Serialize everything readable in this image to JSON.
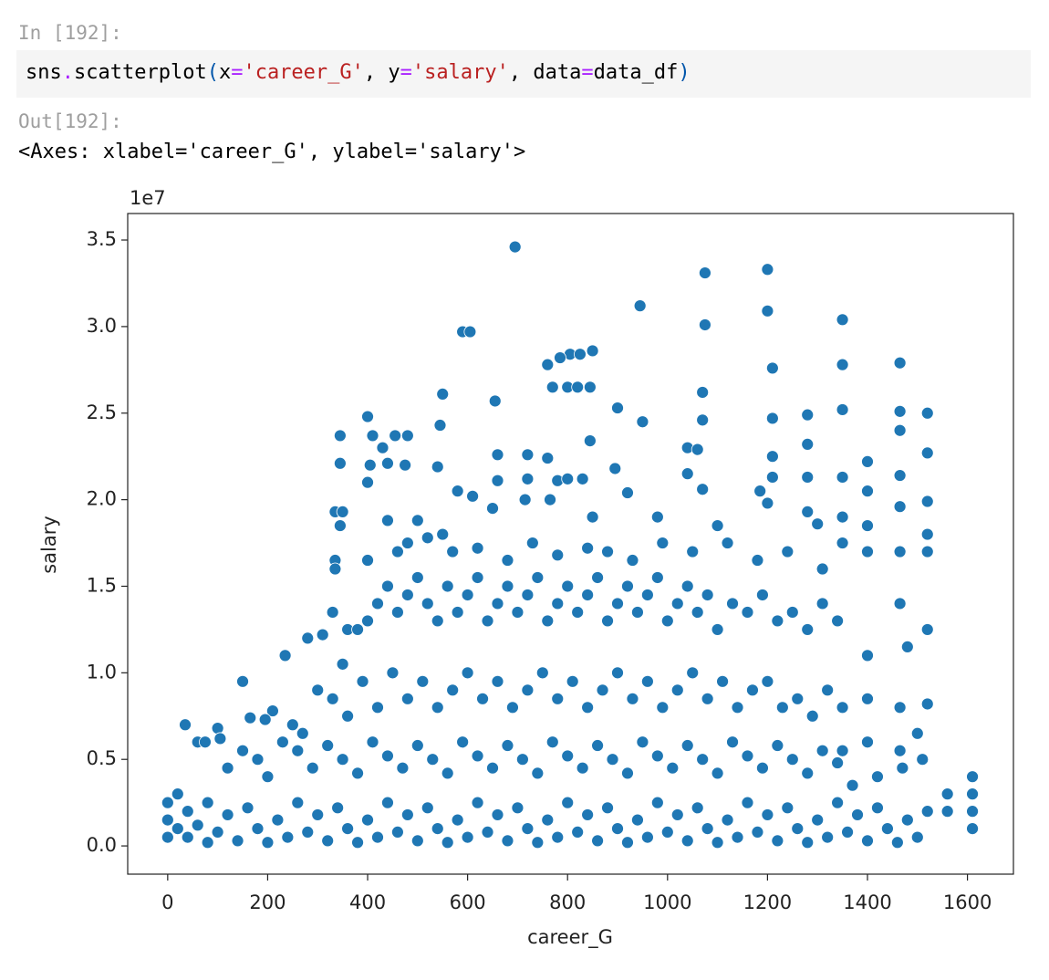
{
  "input_prompt": "In [192]:",
  "code_tokens": [
    {
      "text": "sns",
      "color": "#000000"
    },
    {
      "text": ".",
      "color": "#aa22ff"
    },
    {
      "text": "scatterplot",
      "color": "#000000"
    },
    {
      "text": "(",
      "color": "#0055aa"
    },
    {
      "text": "x",
      "color": "#000000"
    },
    {
      "text": "=",
      "color": "#aa22ff"
    },
    {
      "text": "'career_G'",
      "color": "#ba2121"
    },
    {
      "text": ", y",
      "color": "#000000"
    },
    {
      "text": "=",
      "color": "#aa22ff"
    },
    {
      "text": "'salary'",
      "color": "#ba2121"
    },
    {
      "text": ", data",
      "color": "#000000"
    },
    {
      "text": "=",
      "color": "#aa22ff"
    },
    {
      "text": "data_df",
      "color": "#000000"
    },
    {
      "text": ")",
      "color": "#0055aa"
    }
  ],
  "output_prompt": "Out[192]:",
  "output_text": "<Axes: xlabel='career_G', ylabel='salary'>",
  "chart_data": {
    "type": "scatter",
    "x_label": "career_G",
    "y_label": "salary",
    "y_offset_label": "1e7",
    "color": "#1f77b4",
    "edge_color": "#ffffff",
    "xlim": [
      -80,
      1692
    ],
    "ylim": [
      -0.163,
      3.653
    ],
    "xticks": [
      0,
      200,
      400,
      600,
      800,
      1000,
      1200,
      1400,
      1600
    ],
    "yticks": [
      {
        "value": 0,
        "label": "0.0"
      },
      0.5,
      {
        "value": 1,
        "label": "1.0"
      },
      1.5,
      {
        "value": 2,
        "label": "2.0"
      },
      2.5,
      {
        "value": 3,
        "label": "3.0"
      },
      3.5
    ],
    "x": [
      695,
      1075,
      1200,
      945,
      1075,
      1200,
      1350,
      590,
      605,
      1465,
      1350,
      1210,
      850,
      805,
      825,
      785,
      760,
      770,
      800,
      820,
      845,
      550,
      1070,
      655,
      900,
      1350,
      1465,
      1520,
      1280,
      400,
      1210,
      950,
      1070,
      545,
      345,
      410,
      455,
      480,
      845,
      1280,
      1465,
      430,
      1040,
      1060,
      1210,
      660,
      720,
      760,
      1400,
      1520,
      345,
      405,
      440,
      475,
      540,
      895,
      1465,
      1040,
      1210,
      1280,
      1350,
      400,
      720,
      780,
      800,
      830,
      660,
      1185,
      1070,
      580,
      920,
      1400,
      610,
      715,
      765,
      1520,
      1200,
      650,
      440,
      335,
      350,
      345,
      500,
      1280,
      1465,
      1350,
      1100,
      550,
      850,
      980,
      1300,
      1520,
      1400,
      400,
      460,
      480,
      520,
      570,
      620,
      680,
      730,
      780,
      840,
      880,
      930,
      990,
      1050,
      1120,
      1180,
      1240,
      1310,
      1350,
      1465,
      1520,
      335,
      335,
      1400,
      330,
      360,
      380,
      400,
      420,
      440,
      460,
      480,
      500,
      520,
      540,
      560,
      580,
      600,
      620,
      640,
      660,
      680,
      700,
      720,
      740,
      760,
      780,
      800,
      820,
      840,
      860,
      880,
      900,
      920,
      940,
      960,
      980,
      1000,
      1020,
      1040,
      1060,
      1080,
      1100,
      1130,
      1160,
      1190,
      1220,
      1250,
      1280,
      1310,
      1340,
      1400,
      1465,
      1520,
      1480,
      280,
      235,
      310,
      350,
      150,
      165,
      210,
      195,
      250,
      270,
      300,
      330,
      360,
      390,
      420,
      450,
      480,
      510,
      540,
      570,
      600,
      630,
      660,
      690,
      720,
      750,
      780,
      810,
      840,
      870,
      900,
      930,
      960,
      990,
      1020,
      1050,
      1080,
      1110,
      1140,
      1170,
      1200,
      1230,
      1260,
      1290,
      1320,
      1350,
      1400,
      1465,
      1520,
      1500,
      1465,
      1400,
      1350,
      35,
      60,
      75,
      100,
      105,
      120,
      150,
      180,
      200,
      230,
      260,
      290,
      320,
      350,
      380,
      410,
      440,
      470,
      500,
      530,
      560,
      590,
      620,
      650,
      680,
      710,
      740,
      770,
      800,
      830,
      860,
      890,
      920,
      950,
      980,
      1010,
      1040,
      1070,
      1100,
      1130,
      1160,
      1190,
      1220,
      1250,
      1280,
      1310,
      1340,
      1370,
      1420,
      1470,
      1510,
      1560,
      1610,
      1610,
      0,
      0,
      0,
      20,
      20,
      40,
      40,
      60,
      80,
      80,
      100,
      120,
      140,
      160,
      180,
      200,
      220,
      240,
      260,
      280,
      300,
      320,
      340,
      360,
      380,
      400,
      420,
      440,
      460,
      480,
      500,
      520,
      540,
      560,
      580,
      600,
      620,
      640,
      660,
      680,
      700,
      720,
      740,
      760,
      780,
      800,
      820,
      840,
      860,
      880,
      900,
      920,
      940,
      960,
      980,
      1000,
      1020,
      1040,
      1060,
      1080,
      1100,
      1120,
      1140,
      1160,
      1180,
      1200,
      1220,
      1240,
      1260,
      1280,
      1300,
      1320,
      1340,
      1360,
      1380,
      1400,
      1420,
      1440,
      1460,
      1480,
      1500,
      1520,
      1560,
      1610,
      1610
    ],
    "values": [
      3.46,
      3.31,
      3.33,
      3.12,
      3.01,
      3.09,
      3.04,
      2.97,
      2.97,
      2.79,
      2.78,
      2.76,
      2.86,
      2.84,
      2.84,
      2.82,
      2.78,
      2.65,
      2.65,
      2.65,
      2.65,
      2.61,
      2.62,
      2.57,
      2.53,
      2.52,
      2.51,
      2.5,
      2.49,
      2.48,
      2.47,
      2.45,
      2.46,
      2.43,
      2.37,
      2.37,
      2.37,
      2.37,
      2.34,
      2.32,
      2.4,
      2.3,
      2.3,
      2.29,
      2.25,
      2.26,
      2.26,
      2.24,
      2.22,
      2.27,
      2.21,
      2.2,
      2.21,
      2.2,
      2.19,
      2.18,
      2.14,
      2.15,
      2.13,
      2.13,
      2.13,
      2.1,
      2.12,
      2.11,
      2.12,
      2.12,
      2.11,
      2.05,
      2.06,
      2.05,
      2.04,
      2.05,
      2.02,
      2.0,
      2.0,
      1.99,
      1.98,
      1.95,
      1.88,
      1.93,
      1.93,
      1.85,
      1.88,
      1.93,
      1.96,
      1.9,
      1.85,
      1.8,
      1.9,
      1.9,
      1.86,
      1.8,
      1.85,
      1.65,
      1.7,
      1.75,
      1.78,
      1.7,
      1.72,
      1.65,
      1.75,
      1.68,
      1.72,
      1.7,
      1.65,
      1.75,
      1.7,
      1.75,
      1.65,
      1.7,
      1.6,
      1.75,
      1.7,
      1.7,
      1.65,
      1.6,
      1.7,
      1.35,
      1.25,
      1.25,
      1.3,
      1.4,
      1.5,
      1.35,
      1.45,
      1.55,
      1.4,
      1.3,
      1.5,
      1.35,
      1.45,
      1.55,
      1.3,
      1.4,
      1.5,
      1.35,
      1.45,
      1.55,
      1.3,
      1.4,
      1.5,
      1.35,
      1.45,
      1.55,
      1.3,
      1.4,
      1.5,
      1.35,
      1.45,
      1.55,
      1.3,
      1.4,
      1.5,
      1.35,
      1.45,
      1.25,
      1.4,
      1.35,
      1.45,
      1.3,
      1.35,
      1.25,
      1.4,
      1.3,
      1.1,
      1.4,
      1.25,
      1.15,
      1.2,
      1.1,
      1.22,
      1.05,
      0.95,
      0.74,
      0.78,
      0.73,
      0.7,
      0.65,
      0.9,
      0.85,
      0.75,
      0.95,
      0.8,
      1.0,
      0.85,
      0.95,
      0.8,
      0.9,
      1.0,
      0.85,
      0.95,
      0.8,
      0.9,
      1.0,
      0.85,
      0.95,
      0.8,
      0.9,
      1.0,
      0.85,
      0.95,
      0.8,
      0.9,
      1.0,
      0.85,
      0.95,
      0.8,
      0.9,
      0.95,
      0.8,
      0.85,
      0.75,
      0.9,
      0.8,
      0.85,
      0.8,
      0.82,
      0.65,
      0.55,
      0.6,
      0.55,
      0.7,
      0.6,
      0.6,
      0.68,
      0.62,
      0.45,
      0.55,
      0.5,
      0.4,
      0.6,
      0.55,
      0.45,
      0.58,
      0.5,
      0.42,
      0.6,
      0.52,
      0.45,
      0.58,
      0.5,
      0.42,
      0.6,
      0.52,
      0.45,
      0.58,
      0.5,
      0.42,
      0.6,
      0.52,
      0.45,
      0.58,
      0.5,
      0.42,
      0.6,
      0.52,
      0.45,
      0.58,
      0.5,
      0.42,
      0.6,
      0.52,
      0.45,
      0.58,
      0.5,
      0.42,
      0.55,
      0.48,
      0.35,
      0.4,
      0.45,
      0.5,
      0.3,
      0.4,
      0.3,
      0.05,
      0.15,
      0.25,
      0.1,
      0.3,
      0.05,
      0.2,
      0.12,
      0.02,
      0.25,
      0.08,
      0.18,
      0.03,
      0.22,
      0.1,
      0.02,
      0.15,
      0.05,
      0.25,
      0.08,
      0.18,
      0.03,
      0.22,
      0.1,
      0.02,
      0.15,
      0.05,
      0.25,
      0.08,
      0.18,
      0.03,
      0.22,
      0.1,
      0.02,
      0.15,
      0.05,
      0.25,
      0.08,
      0.18,
      0.03,
      0.22,
      0.1,
      0.02,
      0.15,
      0.05,
      0.25,
      0.08,
      0.18,
      0.03,
      0.22,
      0.1,
      0.02,
      0.15,
      0.05,
      0.25,
      0.08,
      0.18,
      0.03,
      0.22,
      0.1,
      0.02,
      0.15,
      0.05,
      0.25,
      0.08,
      0.18,
      0.03,
      0.22,
      0.1,
      0.02,
      0.15,
      0.05,
      0.25,
      0.08,
      0.18,
      0.03,
      0.22,
      0.1,
      0.02,
      0.15,
      0.05,
      0.2,
      0.2,
      0.1,
      0.2
    ]
  }
}
